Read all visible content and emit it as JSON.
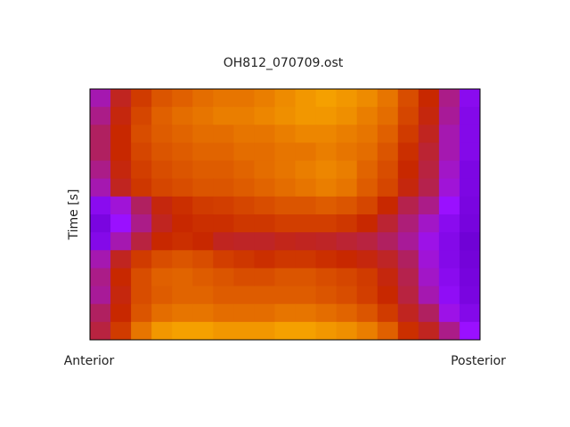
{
  "chart_data": {
    "type": "heatmap",
    "title": "OH812_070709.ost",
    "ylabel": "Time [s]",
    "xlabel_left": "Anterior",
    "xlabel_right": "Posterior",
    "colorscale": [
      {
        "value": 0,
        "color": "#6a00d0"
      },
      {
        "value": 15,
        "color": "#9a10ff"
      },
      {
        "value": 35,
        "color": "#b02060"
      },
      {
        "value": 50,
        "color": "#c82800"
      },
      {
        "value": 65,
        "color": "#e06000"
      },
      {
        "value": 80,
        "color": "#f5a000"
      }
    ],
    "values": [
      [
        25,
        45,
        55,
        62,
        65,
        68,
        70,
        70,
        72,
        75,
        78,
        80,
        78,
        75,
        70,
        60,
        50,
        30,
        10
      ],
      [
        30,
        48,
        58,
        65,
        68,
        70,
        72,
        72,
        74,
        76,
        78,
        78,
        76,
        72,
        68,
        58,
        48,
        28,
        8
      ],
      [
        35,
        50,
        60,
        64,
        66,
        68,
        68,
        70,
        70,
        72,
        74,
        74,
        72,
        70,
        65,
        55,
        45,
        25,
        8
      ],
      [
        35,
        50,
        58,
        62,
        64,
        66,
        66,
        68,
        68,
        70,
        70,
        72,
        70,
        68,
        62,
        52,
        42,
        25,
        8
      ],
      [
        30,
        48,
        56,
        60,
        62,
        64,
        64,
        66,
        68,
        70,
        72,
        74,
        72,
        66,
        60,
        50,
        40,
        22,
        6
      ],
      [
        25,
        45,
        54,
        58,
        60,
        62,
        62,
        64,
        66,
        68,
        70,
        72,
        70,
        64,
        58,
        48,
        38,
        20,
        6
      ],
      [
        10,
        20,
        35,
        48,
        52,
        55,
        56,
        58,
        60,
        62,
        62,
        64,
        62,
        58,
        50,
        38,
        30,
        15,
        5
      ],
      [
        5,
        15,
        30,
        45,
        50,
        52,
        52,
        54,
        54,
        56,
        56,
        56,
        54,
        50,
        42,
        32,
        22,
        10,
        4
      ],
      [
        8,
        25,
        40,
        50,
        52,
        50,
        45,
        44,
        44,
        46,
        45,
        44,
        42,
        40,
        35,
        28,
        18,
        8,
        2
      ],
      [
        25,
        45,
        55,
        60,
        62,
        60,
        56,
        54,
        52,
        54,
        54,
        52,
        50,
        48,
        44,
        35,
        20,
        8,
        3
      ],
      [
        30,
        50,
        60,
        65,
        66,
        64,
        62,
        60,
        60,
        62,
        62,
        60,
        58,
        55,
        48,
        38,
        22,
        10,
        4
      ],
      [
        28,
        48,
        60,
        64,
        66,
        66,
        64,
        64,
        64,
        64,
        64,
        62,
        60,
        56,
        50,
        40,
        25,
        12,
        5
      ],
      [
        35,
        50,
        62,
        68,
        70,
        70,
        68,
        68,
        68,
        70,
        70,
        68,
        66,
        62,
        55,
        45,
        35,
        18,
        8
      ],
      [
        40,
        55,
        70,
        78,
        80,
        80,
        78,
        78,
        78,
        80,
        80,
        78,
        76,
        72,
        65,
        52,
        45,
        30,
        15
      ]
    ]
  }
}
